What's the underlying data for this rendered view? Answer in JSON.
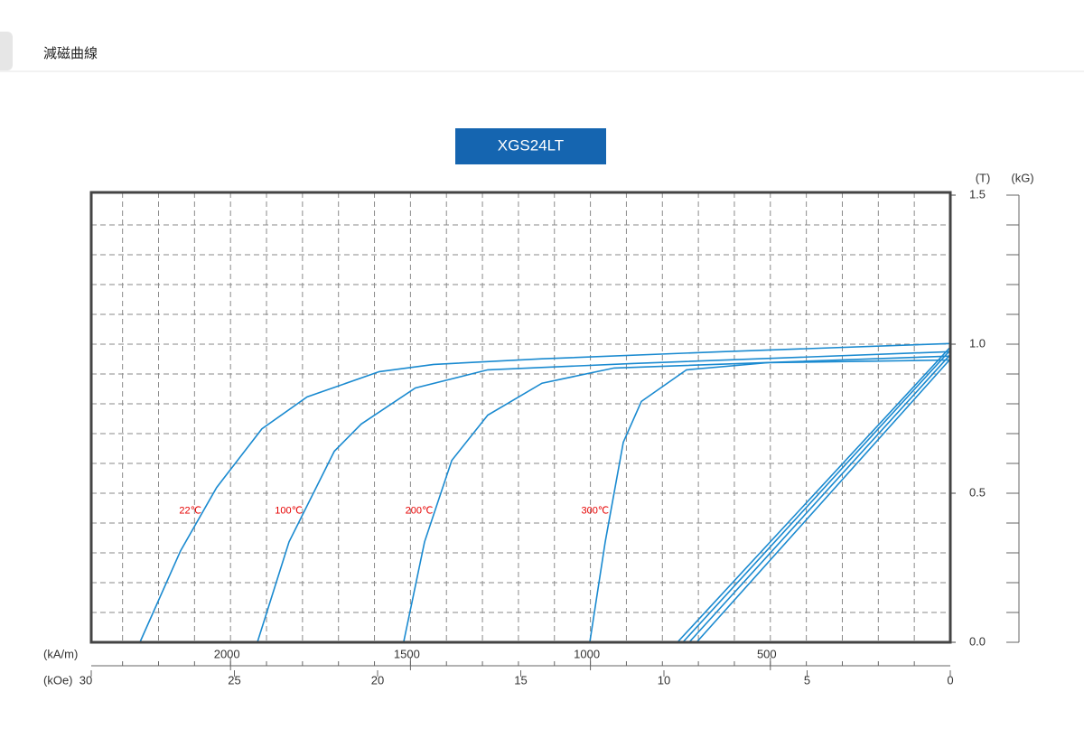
{
  "header": {
    "title": "減磁曲線"
  },
  "chart_data": {
    "type": "line",
    "title": "XGS24LT",
    "y_unit": "(T)",
    "y2_unit": "(kG)",
    "x_unit": "(kOe)",
    "x2_unit": "(kA/m)",
    "xlim": [
      30,
      0
    ],
    "xticks": [
      30,
      25,
      20,
      15,
      10,
      5,
      0
    ],
    "x2lim": [
      2387,
      0
    ],
    "x2ticks": [
      2000,
      1500,
      1000,
      500
    ],
    "x2grid": [
      100,
      200,
      300,
      400,
      500,
      600,
      700,
      800,
      900,
      1000,
      1100,
      1200,
      1300,
      1400,
      1500,
      1600,
      1700,
      1800,
      1900,
      2000,
      2100,
      2200,
      2300
    ],
    "ylim": [
      0,
      1.5
    ],
    "yticks": [
      {
        "value": 0,
        "label": "0.0"
      },
      0.5,
      {
        "value": 1,
        "label": "1.0"
      },
      1.5
    ],
    "ygrid": [
      0.1,
      0.2,
      0.3,
      0.4,
      0.5,
      0.6,
      0.7,
      0.8,
      0.9,
      1.0,
      1.1,
      1.2,
      1.3,
      1.4
    ],
    "y2lim": [
      0,
      15
    ],
    "y2_tick_marks": [
      0,
      1,
      2,
      3,
      4,
      5,
      6,
      7,
      8,
      9,
      10,
      11,
      12,
      13,
      14,
      15
    ],
    "grid": true,
    "label_color": "#e60000",
    "series": [
      {
        "name": "22℃",
        "color": "#1a8ad0",
        "x": [
          28.3,
          26.88,
          25.62,
          24.04,
          22.46,
          19.94,
          18.04,
          14.26,
          7.95,
          0
        ],
        "values": [
          0,
          0.307,
          0.519,
          0.716,
          0.823,
          0.908,
          0.932,
          0.951,
          0.975,
          1.002
        ],
        "b_x": [
          0,
          9.53
        ],
        "b_values": [
          0.99,
          0
        ]
      },
      {
        "name": "100℃",
        "color": "#1a8ad0",
        "x": [
          24.2,
          23.09,
          21.51,
          20.57,
          18.68,
          16.15,
          11.1,
          0
        ],
        "values": [
          0,
          0.337,
          0.641,
          0.732,
          0.853,
          0.914,
          0.935,
          0.975
        ],
        "b_x": [
          0,
          9.34
        ],
        "b_values": [
          0.98,
          0
        ]
      },
      {
        "name": "200℃",
        "color": "#1a8ad0",
        "x": [
          19.09,
          18.36,
          17.41,
          16.15,
          14.26,
          11.74,
          0
        ],
        "values": [
          0,
          0.337,
          0.61,
          0.762,
          0.869,
          0.92,
          0.96
        ],
        "b_x": [
          0,
          9.12
        ],
        "b_values": [
          0.965,
          0
        ]
      },
      {
        "name": "300℃",
        "color": "#1a8ad0",
        "x": [
          12.59,
          12.05,
          11.42,
          10.79,
          9.21,
          6.37,
          0
        ],
        "values": [
          0,
          0.337,
          0.671,
          0.808,
          0.914,
          0.938,
          0.947
        ],
        "b_x": [
          0,
          8.86
        ],
        "b_values": [
          0.95,
          0
        ]
      }
    ]
  }
}
